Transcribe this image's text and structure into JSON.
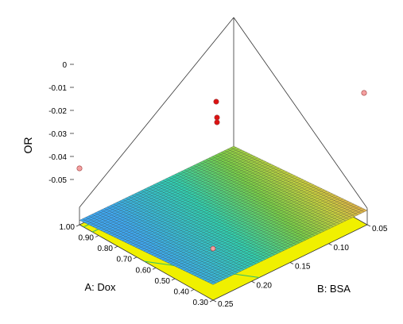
{
  "chart_data": {
    "type": "surface3d",
    "title": "",
    "watermark": "",
    "x_axis": {
      "label": "A: Dox",
      "ticks": [
        0.3,
        0.4,
        0.5,
        0.6,
        0.7,
        0.8,
        0.9,
        1.0
      ],
      "tick_labels": [
        "0.30",
        "0.40",
        "0.50",
        "0.60",
        "0.70",
        "0.80",
        "0.90",
        "1.00"
      ],
      "range": [
        0.3,
        1.0
      ]
    },
    "y_axis": {
      "label": "B: BSA",
      "ticks": [
        0.25,
        0.2,
        0.15,
        0.1,
        0.05
      ],
      "tick_labels": [
        "0.25",
        "0.20",
        "0.15",
        "0.10",
        "0.05"
      ],
      "range": [
        0.05,
        0.25
      ]
    },
    "z_axis": {
      "label": "OR",
      "ticks": [
        -0.05,
        -0.04,
        -0.03,
        -0.02,
        -0.01,
        0
      ],
      "tick_labels": [
        "-0.05",
        "-0.04",
        "-0.03",
        "-0.02",
        "-0.01",
        "0"
      ],
      "range": [
        -0.055,
        0.0
      ]
    },
    "surface": {
      "description": "planar response surface",
      "corner_values": {
        "dox_0.30_bsa_0.25": -0.006,
        "dox_1.00_bsa_0.25": -0.041,
        "dox_0.30_bsa_0.05": -0.01,
        "dox_1.00_bsa_0.05": -0.045
      }
    },
    "points": [
      {
        "dox": 1.0,
        "bsa": 0.25,
        "or": -0.045,
        "color": "#f4a0a0"
      },
      {
        "dox": 0.3,
        "bsa": 0.05,
        "or": -0.012,
        "color": "#f4a0a0"
      },
      {
        "dox": 0.65,
        "bsa": 0.15,
        "or": -0.017,
        "color": "#dd1111"
      },
      {
        "dox": 0.65,
        "bsa": 0.15,
        "or": -0.021,
        "color": "#dd1111"
      },
      {
        "dox": 0.65,
        "bsa": 0.15,
        "or": -0.022,
        "color": "#dd1111"
      }
    ],
    "floor_color": "#f0f000",
    "grid": false
  }
}
